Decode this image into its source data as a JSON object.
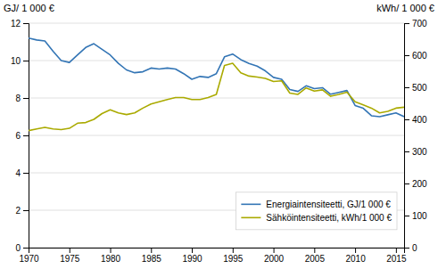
{
  "chart_data": {
    "type": "line",
    "ylabel": "GJ/ 1 000 €",
    "y2label": "kWh/ 1 000 €",
    "x": [
      1970,
      1971,
      1972,
      1973,
      1974,
      1975,
      1976,
      1977,
      1978,
      1979,
      1980,
      1981,
      1982,
      1983,
      1984,
      1985,
      1986,
      1987,
      1988,
      1989,
      1990,
      1991,
      1992,
      1993,
      1994,
      1995,
      1996,
      1997,
      1998,
      1999,
      2000,
      2001,
      2002,
      2003,
      2004,
      2005,
      2006,
      2007,
      2008,
      2009,
      2010,
      2011,
      2012,
      2013,
      2014,
      2015,
      2016
    ],
    "xlim": [
      1970,
      2016
    ],
    "xticks": [
      1970,
      1975,
      1980,
      1985,
      1990,
      1995,
      2000,
      2005,
      2010,
      2015
    ],
    "ylim": [
      0,
      12
    ],
    "yticks": [
      0,
      2,
      4,
      6,
      8,
      10,
      12
    ],
    "y2lim": [
      0,
      700
    ],
    "y2ticks": [
      0,
      100,
      200,
      300,
      400,
      500,
      600,
      700
    ],
    "grid": true,
    "legend": "lower right",
    "series": [
      {
        "name": "Energiaintensiteetti, GJ/1 000 €",
        "color": "#3375B5",
        "values": [
          11.2,
          11.1,
          11.05,
          10.5,
          10.0,
          9.9,
          10.3,
          10.7,
          10.9,
          10.6,
          10.3,
          9.85,
          9.5,
          9.35,
          9.4,
          9.6,
          9.55,
          9.6,
          9.55,
          9.3,
          9.0,
          9.15,
          9.1,
          9.3,
          10.2,
          10.35,
          10.05,
          9.85,
          9.7,
          9.45,
          9.1,
          9.0,
          8.45,
          8.35,
          8.65,
          8.5,
          8.55,
          8.2,
          8.3,
          8.4,
          7.6,
          7.45,
          7.05,
          7.0,
          7.1,
          7.2,
          7.0
        ]
      },
      {
        "name": "Sähköintensiteetti, kWh/1 000 €",
        "color": "#AAAA00",
        "axis": "y2",
        "values": [
          365,
          370,
          375,
          370,
          368,
          372,
          388,
          390,
          400,
          418,
          430,
          420,
          415,
          420,
          435,
          448,
          455,
          462,
          468,
          468,
          462,
          462,
          468,
          478,
          568,
          575,
          545,
          535,
          532,
          528,
          518,
          520,
          482,
          478,
          498,
          488,
          492,
          472,
          478,
          485,
          455,
          445,
          435,
          420,
          425,
          435,
          438
        ]
      }
    ]
  }
}
